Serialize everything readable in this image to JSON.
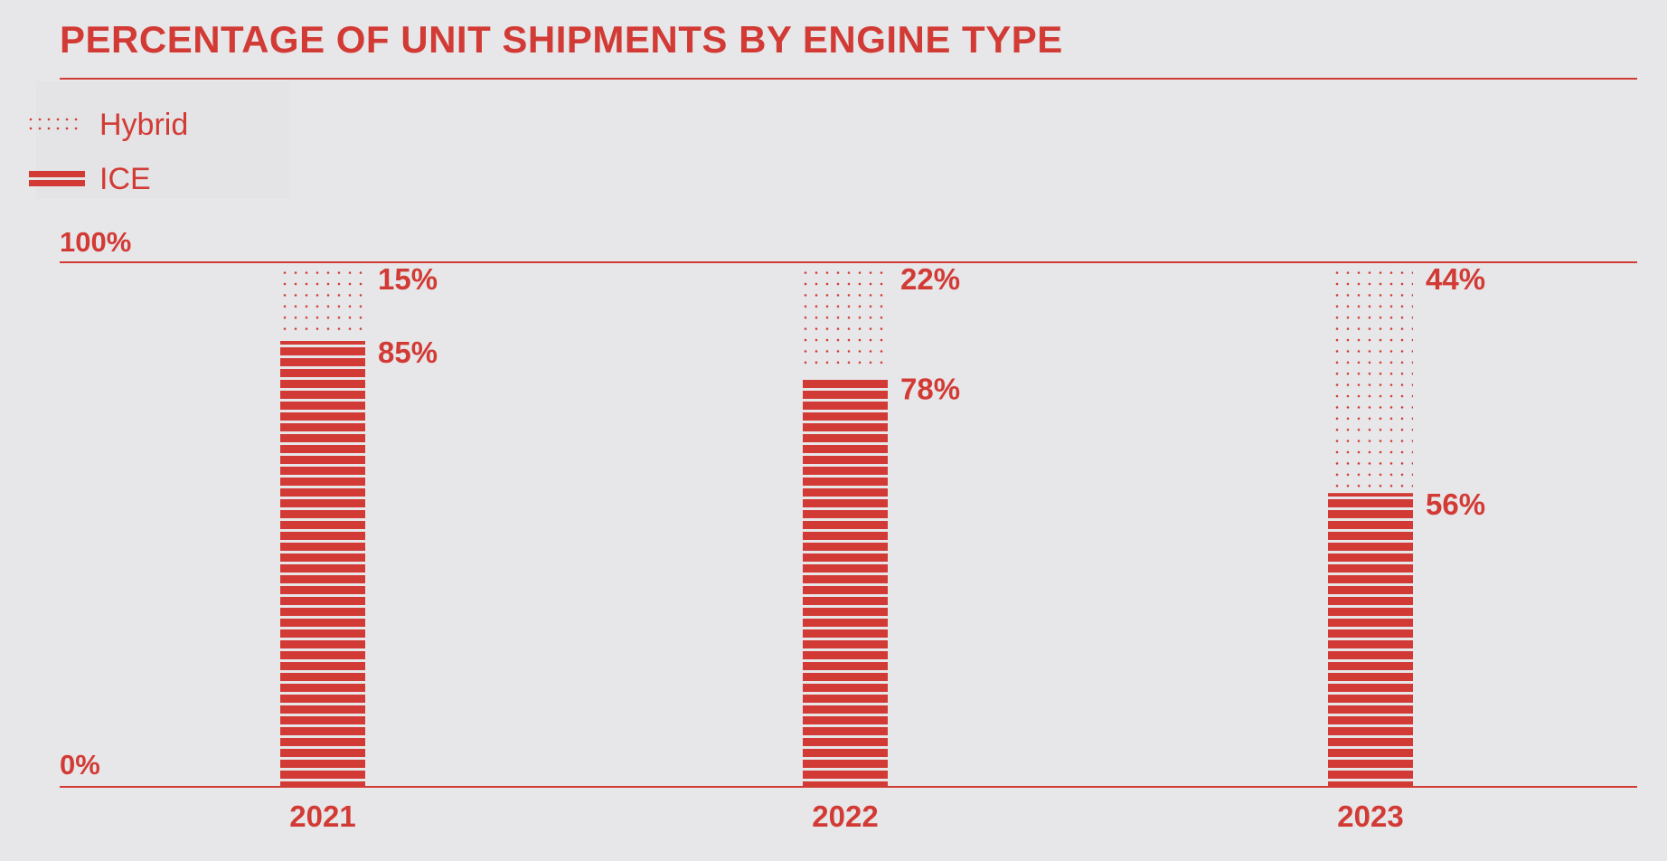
{
  "colors": {
    "accent": "#d23b35",
    "background": "#e7e6e8"
  },
  "legend": {
    "items": [
      {
        "label": "Hybrid",
        "pattern": "dots"
      },
      {
        "label": "ICE",
        "pattern": "stripes"
      }
    ]
  },
  "chart_data": {
    "type": "bar",
    "stacked": true,
    "title": "PERCENTAGE OF UNIT SHIPMENTS BY ENGINE TYPE",
    "categories": [
      "2021",
      "2022",
      "2023"
    ],
    "series": [
      {
        "name": "ICE",
        "values": [
          85,
          78,
          56
        ],
        "labels": [
          "85%",
          "78%",
          "56%"
        ],
        "pattern": "stripes"
      },
      {
        "name": "Hybrid",
        "values": [
          15,
          22,
          44
        ],
        "labels": [
          "15%",
          "22%",
          "44%"
        ],
        "pattern": "dots"
      }
    ],
    "ylim": [
      0,
      100
    ],
    "y_tick_labels": [
      "0%",
      "100%"
    ],
    "grid": false,
    "legend_position": "top-left"
  }
}
